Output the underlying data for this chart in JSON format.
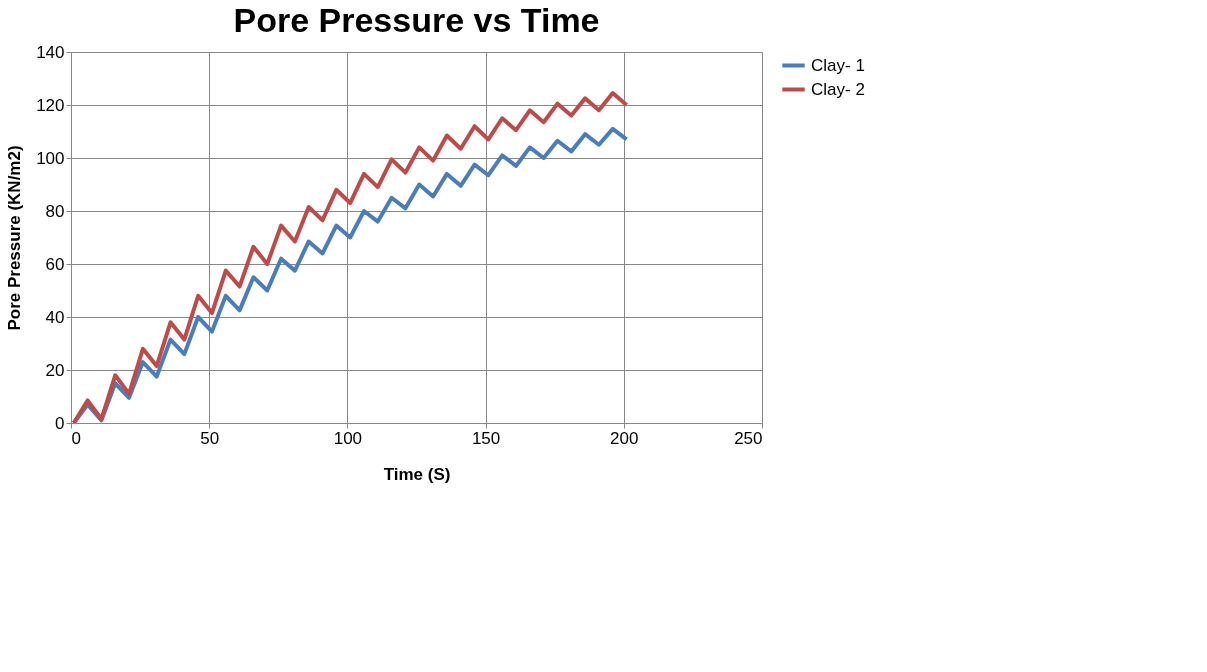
{
  "chart_data": {
    "type": "line",
    "title": "Pore Pressure vs Time",
    "xlabel": "Time (S)",
    "ylabel": "Pore Pressure (KN/m2)",
    "x": [
      1,
      6,
      11,
      16,
      21,
      26,
      31,
      36,
      41,
      46,
      51,
      56,
      61,
      66,
      71,
      76,
      81,
      86,
      91,
      96,
      101,
      106,
      111,
      116,
      121,
      126,
      131,
      136,
      141,
      146,
      151,
      156,
      161,
      166,
      171,
      176,
      181,
      186,
      191,
      196,
      201
    ],
    "series": [
      {
        "name": "Clay- 1",
        "color": "#4a7ebb",
        "values": [
          0,
          7,
          1,
          15,
          9.5,
          23,
          17.5,
          31.5,
          26,
          40,
          34.5,
          48,
          42.5,
          55,
          50,
          62,
          57.5,
          68.5,
          64,
          74.5,
          70,
          80,
          76,
          85,
          81,
          90,
          85.5,
          94,
          89.5,
          97.5,
          93.5,
          101,
          97,
          104,
          100,
          106.5,
          102.5,
          109,
          105,
          111,
          107
        ]
      },
      {
        "name": "Clay- 2",
        "color": "#be4b48",
        "values": [
          0,
          8.5,
          1.5,
          18,
          11,
          28,
          21.5,
          38,
          31.5,
          48,
          41.5,
          57.5,
          51.5,
          66.5,
          60,
          74.5,
          68.5,
          81.5,
          76.5,
          88,
          83,
          94,
          89,
          99.5,
          94.5,
          104,
          99,
          108.5,
          103.5,
          112,
          107,
          115,
          110.5,
          118,
          113.5,
          120.5,
          116,
          122.5,
          118,
          124.5,
          120
        ]
      }
    ],
    "xlim": [
      0,
      250
    ],
    "xticks": [
      0,
      50,
      100,
      150,
      200,
      250
    ],
    "ylim": [
      0,
      140
    ],
    "yticks": [
      0,
      20,
      40,
      60,
      80,
      100,
      120,
      140
    ],
    "grid": true,
    "legend": "right",
    "marker": "none",
    "line_style": "solid"
  }
}
